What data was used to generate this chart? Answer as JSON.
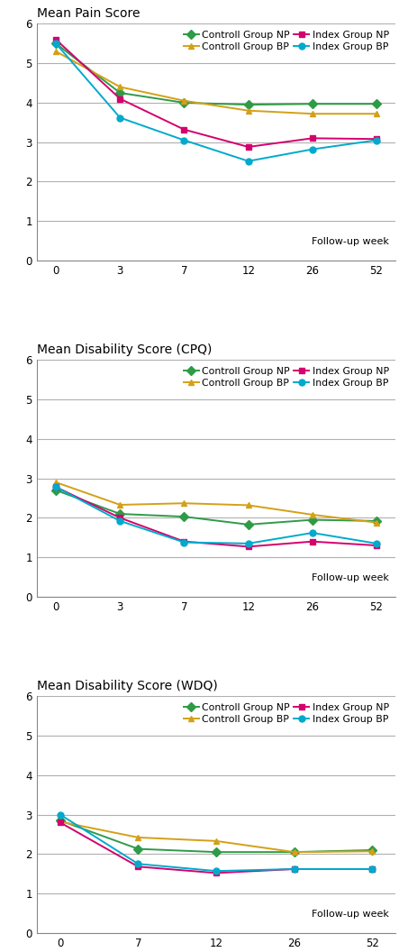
{
  "chart1": {
    "title": "Mean Pain Score",
    "x_labels": [
      "0",
      "3",
      "7",
      "12",
      "26",
      "52"
    ],
    "series": {
      "Controll Group NP": [
        5.5,
        4.25,
        4.0,
        3.95,
        3.97,
        3.97
      ],
      "Controll Group BP": [
        5.3,
        4.4,
        4.05,
        3.8,
        3.72,
        3.72
      ],
      "Index Group NP": [
        5.6,
        4.1,
        3.32,
        2.88,
        3.1,
        3.08
      ],
      "Index Group BP": [
        5.5,
        3.62,
        3.05,
        2.52,
        2.82,
        3.05
      ]
    }
  },
  "chart2": {
    "title": "Mean Disability Score (CPQ)",
    "x_labels": [
      "0",
      "3",
      "7",
      "12",
      "26",
      "52"
    ],
    "series": {
      "Controll Group NP": [
        2.7,
        2.1,
        2.03,
        1.83,
        1.95,
        1.92
      ],
      "Controll Group BP": [
        2.9,
        2.33,
        2.37,
        2.32,
        2.08,
        1.88
      ],
      "Index Group NP": [
        2.78,
        2.0,
        1.4,
        1.27,
        1.4,
        1.3
      ],
      "Index Group BP": [
        2.78,
        1.92,
        1.38,
        1.35,
        1.62,
        1.35
      ]
    }
  },
  "chart3": {
    "title": "Mean Disability Score (WDQ)",
    "x_labels": [
      "0",
      "7",
      "12",
      "26",
      "52"
    ],
    "series": {
      "Controll Group NP": [
        2.85,
        2.13,
        2.05,
        2.05,
        2.1
      ],
      "Controll Group BP": [
        2.82,
        2.42,
        2.33,
        2.05,
        2.07
      ],
      "Index Group NP": [
        2.8,
        1.68,
        1.52,
        1.62,
        1.62
      ],
      "Index Group BP": [
        3.0,
        1.75,
        1.57,
        1.62,
        1.62
      ]
    }
  },
  "colors": {
    "Controll Group NP": "#2e9b47",
    "Controll Group BP": "#d4a017",
    "Index Group NP": "#d4006e",
    "Index Group BP": "#00aacc"
  },
  "markers": {
    "Controll Group NP": "D",
    "Controll Group BP": "^",
    "Index Group NP": "s",
    "Index Group BP": "o"
  },
  "ylim": [
    0,
    6
  ],
  "yticks": [
    0,
    1,
    2,
    3,
    4,
    5,
    6
  ],
  "xlabel": "Follow-up week",
  "legend_order": [
    "Controll Group NP",
    "Controll Group BP",
    "Index Group NP",
    "Index Group BP"
  ],
  "bg_color": "#ffffff",
  "grid_color": "#b0b0b0",
  "title_fontsize": 10,
  "tick_fontsize": 8.5,
  "legend_fontsize": 7.8,
  "label_fontsize": 8,
  "linewidth": 1.4,
  "markersize": 5
}
